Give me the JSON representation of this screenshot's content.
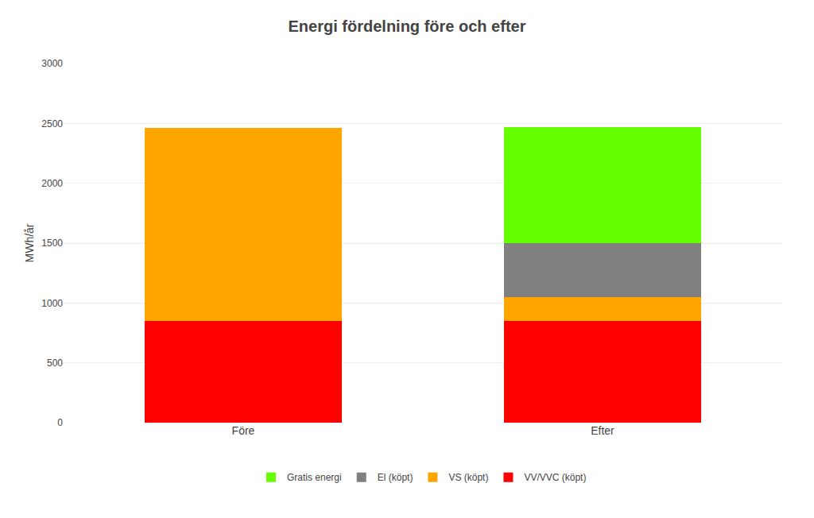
{
  "chart_data": {
    "type": "bar",
    "stacked": true,
    "title": "Energi fördelning före och efter",
    "ylabel": "MWh/år",
    "categories": [
      "Före",
      "Efter"
    ],
    "series": [
      {
        "name": "VV/VVC (köpt)",
        "color": "#FF0000",
        "values": [
          850,
          850
        ]
      },
      {
        "name": "VS (köpt)",
        "color": "#FFA500",
        "values": [
          1610,
          200
        ]
      },
      {
        "name": "El (köpt)",
        "color": "#808080",
        "values": [
          0,
          450
        ]
      },
      {
        "name": "Gratis energi",
        "color": "#66FF00",
        "values": [
          0,
          970
        ]
      }
    ],
    "ylim": [
      0,
      3000
    ],
    "yticks": [
      0,
      500,
      1000,
      1500,
      2000,
      2500,
      3000
    ],
    "grid": true,
    "legend": "bottom"
  }
}
